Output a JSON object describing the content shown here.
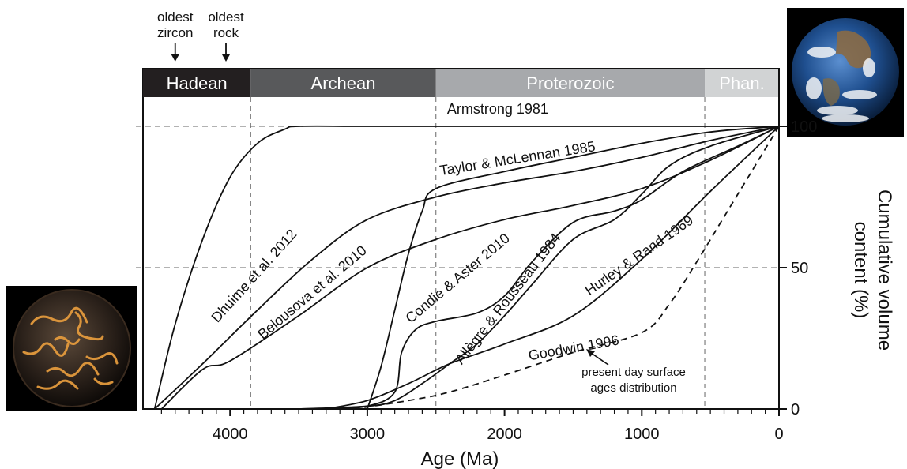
{
  "chart_data": {
    "type": "line",
    "xlabel": "Age (Ma)",
    "ylabel": "Cumulative volume content (%)",
    "ylabel_lines": [
      "Cumulative volume",
      "content (%)"
    ],
    "xlim": [
      4600,
      0
    ],
    "ylim": [
      0,
      100
    ],
    "x_ticks": [
      4000,
      3000,
      2000,
      1000,
      0
    ],
    "x_tick_labels": [
      "4000",
      "3000",
      "2000",
      "1000",
      "0"
    ],
    "y_ticks": [
      0,
      50,
      100
    ],
    "y_tick_labels": [
      "0",
      "50",
      "100"
    ],
    "eons": [
      {
        "name": "Hadean",
        "start": 4600,
        "end": 3850,
        "color": "#231f20"
      },
      {
        "name": "Archean",
        "start": 3850,
        "end": 2500,
        "color": "#58595b"
      },
      {
        "name": "Proterozoic",
        "start": 2500,
        "end": 541,
        "color": "#a7a9ac"
      },
      {
        "name": "Phan.",
        "start": 541,
        "end": 0,
        "color": "#d1d3d4"
      }
    ],
    "annotations": {
      "oldest_zircon": {
        "text_lines": [
          "oldest",
          "zircon"
        ],
        "x": 4400
      },
      "oldest_rock": {
        "text_lines": [
          "oldest",
          "rock"
        ],
        "x": 4030
      },
      "present_day": {
        "text_lines": [
          "present day surface",
          "ages distribution"
        ]
      }
    },
    "series": [
      {
        "name": "Armstrong 1981",
        "label_angle": 0,
        "label_x": 2050,
        "label_y": 104.5,
        "x": [
          4550,
          4400,
          4200,
          4000,
          3800,
          3600,
          3500,
          3000,
          2000,
          1000,
          0
        ],
        "y": [
          0,
          30,
          60,
          82,
          94,
          99,
          100,
          100,
          100,
          100,
          100
        ]
      },
      {
        "name": "Taylor & McLennan 1985",
        "label_angle": -9,
        "label_x": 1900,
        "label_y": 87,
        "x": [
          3000,
          2900,
          2800,
          2700,
          2600,
          2500,
          2000,
          1500,
          1000,
          500,
          0
        ],
        "y": [
          0,
          15,
          35,
          55,
          70,
          78,
          84,
          89,
          94,
          98,
          100
        ]
      },
      {
        "name": "Dhuime et al. 2012",
        "label_angle": -48,
        "label_x": 3800,
        "label_y": 46,
        "x": [
          4550,
          4200,
          3800,
          3400,
          3000,
          2500,
          2000,
          1500,
          1000,
          500,
          0
        ],
        "y": [
          0,
          16,
          35,
          53,
          67,
          75,
          80,
          84,
          89,
          95,
          100
        ]
      },
      {
        "name": "Belousova et al. 2010",
        "label_angle": -40,
        "label_x": 3380,
        "label_y": 40,
        "x": [
          4500,
          4200,
          4000,
          3500,
          3000,
          2500,
          2000,
          1500,
          1000,
          500,
          0
        ],
        "y": [
          0,
          14,
          17,
          33,
          50,
          60,
          67,
          72,
          78,
          88,
          100
        ]
      },
      {
        "name": "Condie & Aster 2010",
        "label_angle": -40,
        "label_x": 2320,
        "label_y": 45,
        "x": [
          3300,
          3000,
          2800,
          2750,
          2650,
          2500,
          2200,
          2000,
          1800,
          1500,
          1200,
          1000,
          700,
          300,
          0
        ],
        "y": [
          0,
          1,
          6,
          20,
          28,
          31,
          34,
          40,
          52,
          66,
          70,
          74,
          84,
          93,
          100
        ]
      },
      {
        "name": "Allègre & Rousseau 1984",
        "label_angle": -52,
        "label_x": 1950,
        "label_y": 38,
        "x": [
          3500,
          3000,
          2800,
          2600,
          2400,
          2200,
          2000,
          1800,
          1500,
          1200,
          1000,
          800,
          500,
          0
        ],
        "y": [
          0,
          1,
          3,
          9,
          16,
          23,
          33,
          44,
          60,
          67,
          76,
          86,
          93,
          100
        ]
      },
      {
        "name": "Hurley & Rand 1969",
        "label_angle": -35,
        "label_x": 1000,
        "label_y": 53,
        "x": [
          3300,
          3000,
          2700,
          2400,
          2000,
          1500,
          1000,
          500,
          0
        ],
        "y": [
          0,
          3,
          9,
          16,
          23,
          33,
          53,
          77,
          100
        ]
      },
      {
        "name": "Goodwin 1996",
        "style": "dashed",
        "label_angle": -10,
        "label_x": 1490,
        "label_y": 20,
        "x": [
          3100,
          2700,
          2400,
          2000,
          1500,
          1000,
          800,
          600,
          400,
          200,
          0
        ],
        "y": [
          0,
          3,
          6,
          12,
          20,
          27,
          37,
          52,
          68,
          84,
          100
        ]
      }
    ]
  }
}
